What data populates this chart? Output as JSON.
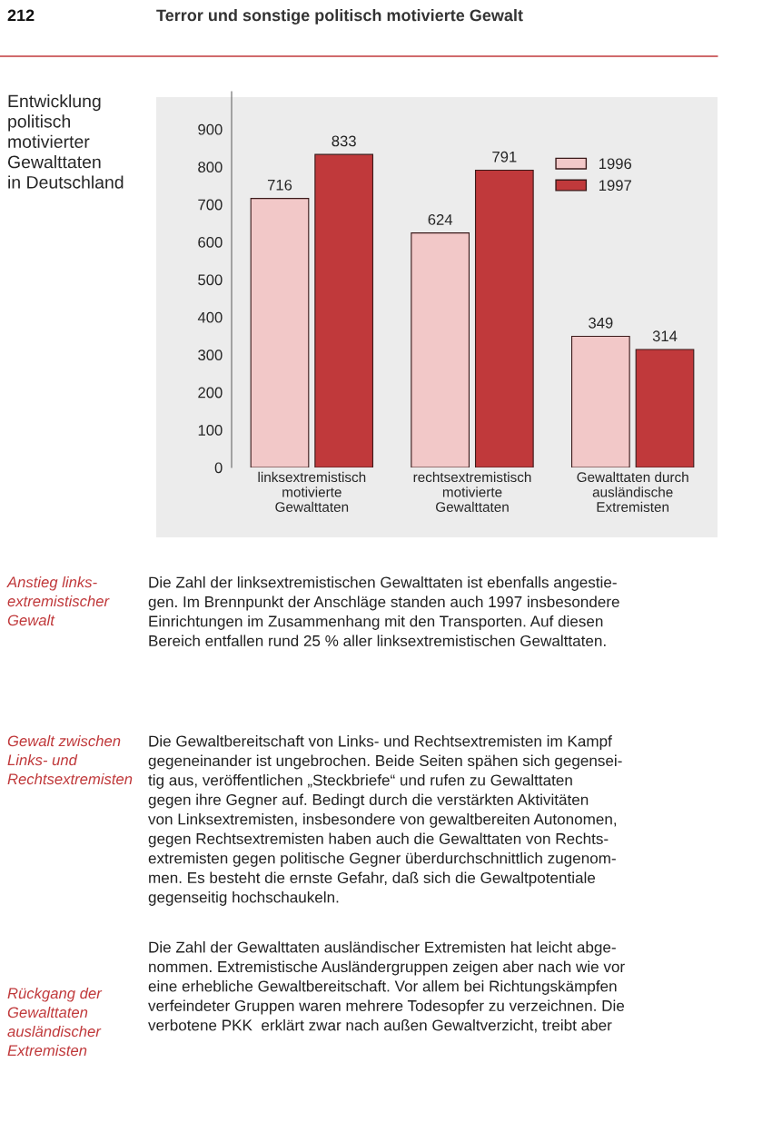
{
  "chart_data": {
    "type": "bar",
    "title": "Entwicklung\npolitisch\nmotivierter\nGewalttaten\nin Deutschland",
    "categories": [
      "linksextremistisch\nmotivierte\nGewalttaten",
      "rechtsextremistisch\nmotivierte\nGewalttaten",
      "Gewalttaten durch\nausländische\nExtremisten"
    ],
    "series": [
      {
        "name": "1996",
        "color": "#f2c8c8",
        "values": [
          716,
          624,
          349
        ]
      },
      {
        "name": "1997",
        "color": "#c0393b",
        "values": [
          833,
          791,
          314
        ]
      }
    ],
    "ylim": [
      0,
      1000
    ],
    "yticks": [
      0,
      100,
      200,
      300,
      400,
      500,
      600,
      700,
      800,
      900
    ],
    "data_labels": true,
    "legend": "top right",
    "grid": false,
    "annotations": [
      "212",
      "Terror und sonstige politisch motivierte Gewalt",
      "Anstieg links-\nextremistischer\nGewalt",
      "Die Zahl der linksextremistischen Gewalttaten ist ebenfalls angestie-\ngen. Im Brennpunkt der Anschläge standen auch 1997 insbesondere\nEinrichtungen im Zusammenhang mit den Transporten. Auf diesen\nBereich entfallen rund 25 % aller linksextremistischen Gewalttaten.",
      "Gewalt zwischen\nLinks- und\nRechtsextremisten",
      "Die Gewaltbereitschaft von Links- und Rechtsextremisten im Kampf\ngegeneinander ist ungebrochen. Beide Seiten spähen sich gegensei-\ntig aus, veröffentlichen „Steckbriefe“ und rufen zu Gewalttaten\ngegen ihre Gegner auf. Bedingt durch die verstärkten Aktivitäten\nvon Linksextremisten, insbesondere von gewaltbereiten Autonomen,\ngegen Rechtsextremisten haben auch die Gewalttaten von Rechts-\nextremisten gegen politische Gegner überdurchschnittlich zugenom-\nmen. Es besteht die ernste Gefahr, daß sich die Gewaltpotentiale\ngegenseitig hochschaukeln.",
      "Rückgang der\nGewalttaten\nausländischer\nExtremisten",
      "Die Zahl der Gewalttaten ausländischer Extremisten hat leicht abge-\nnommen. Extremistische Ausländergruppen zeigen aber nach wie vor\neine erhebliche Gewaltbereitschaft. Vor allem bei Richtungskämpfen\nverfeindeter Gruppen waren mehrere Todesopfer zu verzeichnen. Die\nverbotene PKK  erklärt zwar nach außen Gewaltverzicht, treibt aber"
    ]
  }
}
